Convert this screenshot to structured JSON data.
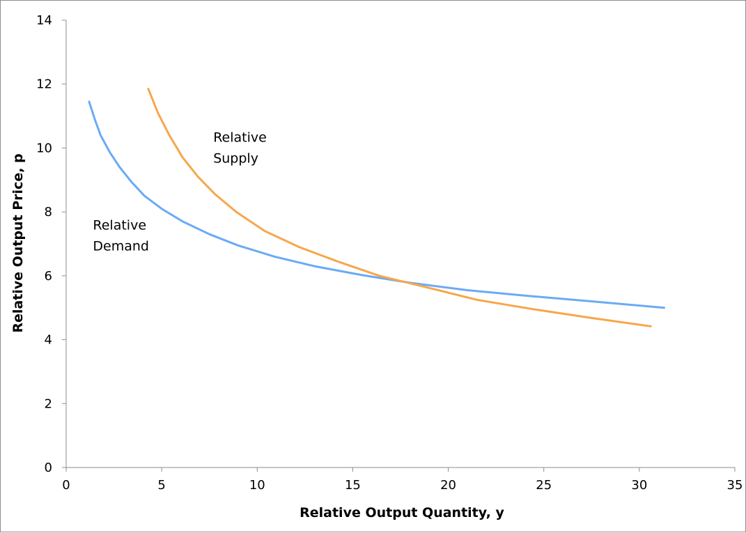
{
  "chart_data": {
    "type": "line",
    "title": "",
    "xlabel": "Relative Output Quantity, y",
    "ylabel": "Relative Output Price, p",
    "xlim": [
      0,
      35
    ],
    "ylim": [
      0,
      14
    ],
    "x_ticks": [
      0,
      5,
      10,
      15,
      20,
      25,
      30,
      35
    ],
    "y_ticks": [
      0,
      2,
      4,
      6,
      8,
      10,
      12,
      14
    ],
    "grid": false,
    "legend": "none",
    "series": [
      {
        "name": "Relative Demand",
        "color": "#6aaaf5",
        "points": [
          [
            1.2,
            11.45
          ],
          [
            1.5,
            10.9
          ],
          [
            1.8,
            10.4
          ],
          [
            2.3,
            9.85
          ],
          [
            2.8,
            9.4
          ],
          [
            3.4,
            8.95
          ],
          [
            4.1,
            8.5
          ],
          [
            5.0,
            8.1
          ],
          [
            6.1,
            7.7
          ],
          [
            7.5,
            7.3
          ],
          [
            9.0,
            6.95
          ],
          [
            10.9,
            6.6
          ],
          [
            13.0,
            6.3
          ],
          [
            15.5,
            6.02
          ],
          [
            18.0,
            5.78
          ],
          [
            21.0,
            5.55
          ],
          [
            24.0,
            5.38
          ],
          [
            27.5,
            5.2
          ],
          [
            31.3,
            5.0
          ]
        ]
      },
      {
        "name": "Relative Supply",
        "color": "#f7a64a",
        "points": [
          [
            4.3,
            11.85
          ],
          [
            4.8,
            11.1
          ],
          [
            5.4,
            10.4
          ],
          [
            6.1,
            9.7
          ],
          [
            6.9,
            9.1
          ],
          [
            7.8,
            8.55
          ],
          [
            8.9,
            8.0
          ],
          [
            10.4,
            7.4
          ],
          [
            12.2,
            6.9
          ],
          [
            14.2,
            6.45
          ],
          [
            16.4,
            6.0
          ],
          [
            18.8,
            5.65
          ],
          [
            21.5,
            5.25
          ],
          [
            24.5,
            4.95
          ],
          [
            27.5,
            4.68
          ],
          [
            30.6,
            4.42
          ]
        ]
      }
    ],
    "annotations": [
      {
        "lines": [
          "Relative",
          "Supply"
        ],
        "x": 7.7,
        "y": 10.2
      },
      {
        "lines": [
          "Relative",
          "Demand"
        ],
        "x": 1.4,
        "y": 7.45
      }
    ]
  }
}
